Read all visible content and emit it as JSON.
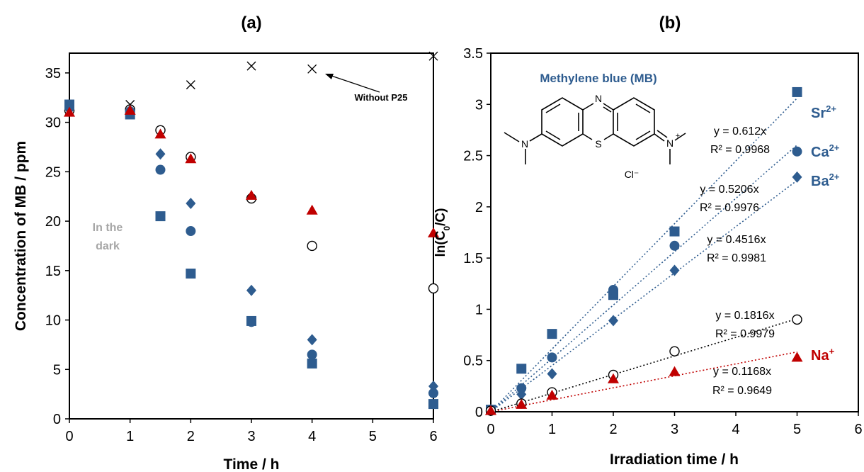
{
  "chart_data": [
    {
      "type": "scatter",
      "panel_label": "(a)",
      "xlabel": "Time / h",
      "ylabel": "Concentration of MB / ppm",
      "xlim": [
        0,
        6
      ],
      "ylim": [
        0,
        37
      ],
      "xticks": [
        "0",
        "1",
        "2",
        "3",
        "4",
        "5",
        "6"
      ],
      "yticks": [
        "0",
        "5",
        "10",
        "15",
        "20",
        "25",
        "30",
        "35"
      ],
      "grid": false,
      "series": [
        {
          "marker": "x",
          "color": "#000000",
          "x": [
            0,
            1,
            2,
            3,
            4,
            6
          ],
          "y": [
            31.6,
            31.8,
            33.8,
            35.7,
            35.4,
            36.7
          ]
        },
        {
          "marker": "circle-open",
          "color": "#000000",
          "x": [
            0,
            1,
            1.5,
            2,
            3,
            4,
            6
          ],
          "y": [
            31.2,
            31.3,
            29.2,
            26.5,
            22.3,
            17.5,
            13.2
          ]
        },
        {
          "marker": "square",
          "color": "#2E5C8F",
          "x": [
            0,
            1,
            1.5,
            2,
            3,
            4,
            6
          ],
          "y": [
            31.8,
            30.8,
            20.5,
            14.7,
            9.9,
            5.6,
            1.5
          ]
        },
        {
          "marker": "circle",
          "color": "#2E5C8F",
          "x": [
            0,
            1,
            1.5,
            2,
            3,
            4,
            6
          ],
          "y": [
            31.5,
            31.1,
            25.2,
            19.0,
            9.8,
            6.5,
            2.6
          ]
        },
        {
          "marker": "diamond",
          "color": "#2E5C8F",
          "x": [
            0,
            1,
            1.5,
            2,
            3,
            4,
            6
          ],
          "y": [
            31.3,
            31.2,
            26.8,
            21.8,
            13.0,
            8.0,
            3.3
          ]
        },
        {
          "marker": "triangle",
          "color": "#C00000",
          "x": [
            0,
            1,
            1.5,
            2,
            3,
            4,
            6
          ],
          "y": [
            31.0,
            31.2,
            28.8,
            26.3,
            22.6,
            21.1,
            18.8
          ]
        }
      ],
      "annotations": {
        "dark_text": [
          "In the",
          "dark"
        ],
        "without_label": "Without P25"
      }
    },
    {
      "type": "scatter",
      "panel_label": "(b)",
      "xlabel": "Irradiation time / h",
      "ylabel": "ln(C0/C)",
      "xlim": [
        0,
        6
      ],
      "ylim": [
        0,
        3.5
      ],
      "xticks": [
        "0",
        "1",
        "2",
        "3",
        "4",
        "5",
        "6"
      ],
      "yticks": [
        "0",
        "0.5",
        "1",
        "1.5",
        "2",
        "2.5",
        "3",
        "3.5"
      ],
      "grid": false,
      "series": [
        {
          "name": "Sr",
          "sup": "2+",
          "marker": "square",
          "color": "#2E5C8F",
          "slope": 0.612,
          "eq": "y = 0.612x",
          "r2": "R² = 0.9968",
          "x": [
            0,
            0.5,
            1,
            2,
            3,
            5
          ],
          "y": [
            0.02,
            0.42,
            0.76,
            1.14,
            1.76,
            3.12
          ]
        },
        {
          "name": "Ca",
          "sup": "2+",
          "marker": "circle",
          "color": "#2E5C8F",
          "slope": 0.5206,
          "eq": "y = 0.5206x",
          "r2": "R² = 0.9976",
          "x": [
            0,
            0.5,
            1,
            2,
            3,
            5
          ],
          "y": [
            0.02,
            0.23,
            0.53,
            1.19,
            1.62,
            2.54
          ]
        },
        {
          "name": "Ba",
          "sup": "2+",
          "marker": "diamond",
          "color": "#2E5C8F",
          "slope": 0.4516,
          "eq": "y = 0.4516x",
          "r2": "R² = 0.9981",
          "x": [
            0,
            0.5,
            1,
            2,
            3,
            5
          ],
          "y": [
            0.02,
            0.17,
            0.37,
            0.89,
            1.38,
            2.29
          ]
        },
        {
          "name": "",
          "sup": "",
          "marker": "circle-open",
          "color": "#000000",
          "slope": 0.1816,
          "eq": "y = 0.1816x",
          "r2": "R² = 0.9979",
          "x": [
            0,
            0.5,
            1,
            2,
            3,
            5
          ],
          "y": [
            0.01,
            0.08,
            0.19,
            0.36,
            0.59,
            0.9
          ]
        },
        {
          "name": "Na",
          "sup": "+",
          "marker": "triangle",
          "color": "#C00000",
          "slope": 0.1168,
          "eq": "y = 0.1168x",
          "r2": "R² = 0.9649",
          "x": [
            0,
            0.5,
            1,
            2,
            3,
            5
          ],
          "y": [
            0.01,
            0.07,
            0.16,
            0.32,
            0.39,
            0.53
          ]
        }
      ],
      "inset": {
        "title": "Methylene blue (MB)",
        "counterion": "Cl⁻",
        "atoms": {
          "n_top": "N",
          "s": "S",
          "n_left": "N",
          "n_right": "N",
          "plus": "+"
        }
      }
    }
  ]
}
